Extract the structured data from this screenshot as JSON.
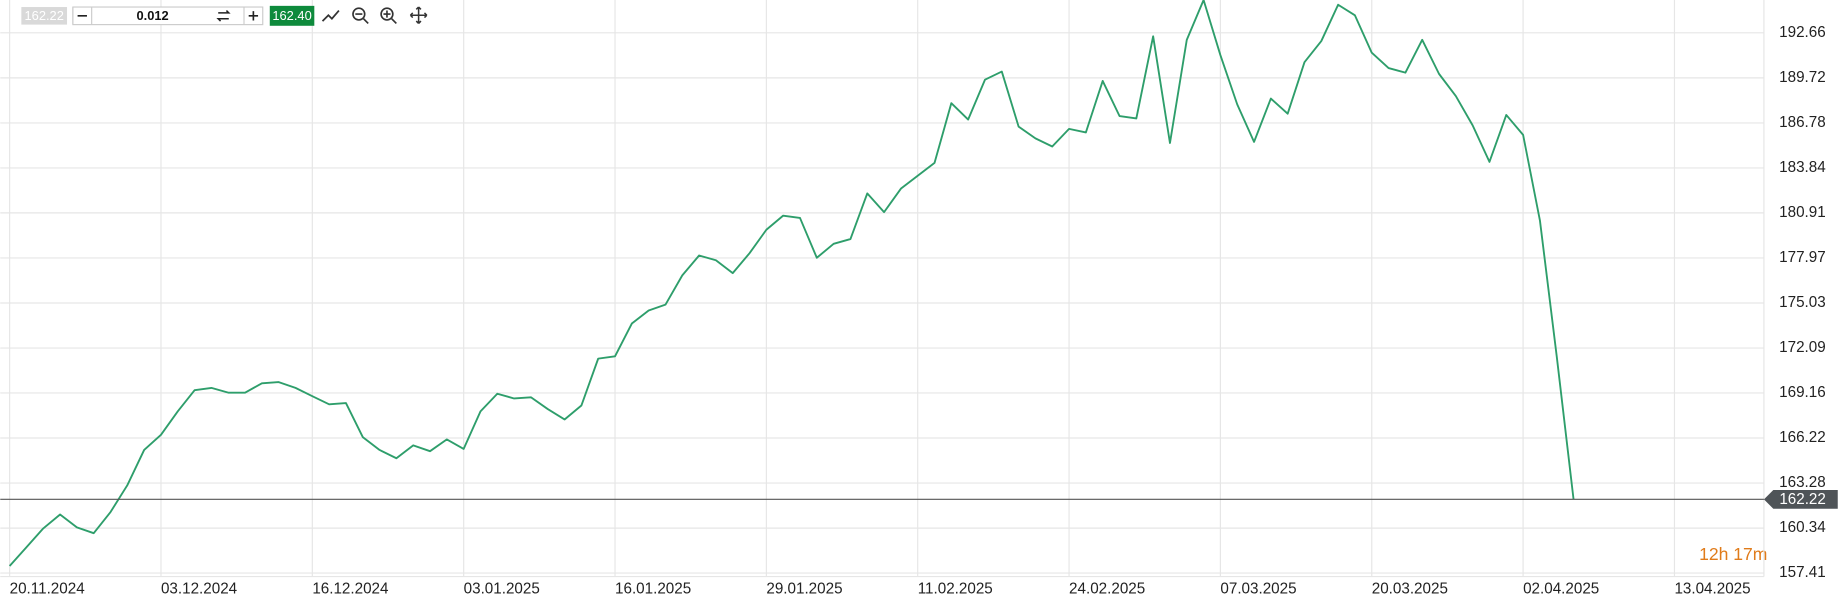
{
  "toolbar": {
    "bid": "162.22",
    "amount": "0.012",
    "ask": "162.40"
  },
  "chart_data": {
    "type": "line",
    "categories": [
      "20.11.2024",
      null,
      null,
      null,
      null,
      null,
      null,
      null,
      null,
      "03.12.2024",
      null,
      null,
      null,
      null,
      null,
      null,
      null,
      null,
      "16.12.2024",
      null,
      null,
      null,
      null,
      null,
      null,
      null,
      null,
      "03.01.2025",
      null,
      null,
      null,
      null,
      null,
      null,
      null,
      null,
      "16.01.2025",
      null,
      null,
      null,
      null,
      null,
      null,
      null,
      null,
      "29.01.2025",
      null,
      null,
      null,
      null,
      null,
      null,
      null,
      null,
      "11.02.2025",
      null,
      null,
      null,
      null,
      null,
      null,
      null,
      null,
      "24.02.2025",
      null,
      null,
      null,
      null,
      null,
      null,
      null,
      null,
      "07.03.2025",
      null,
      null,
      null,
      null,
      null,
      null,
      null,
      null,
      "20.03.2025",
      null,
      null,
      null,
      null,
      null,
      null,
      null,
      null,
      "02.04.2025",
      null,
      null,
      null,
      null,
      null,
      null,
      null,
      null,
      "13.04.2025"
    ],
    "values": [
      157.87,
      159.09,
      160.32,
      161.23,
      160.39,
      160.01,
      161.39,
      163.14,
      165.44,
      166.43,
      167.96,
      169.34,
      169.49,
      169.18,
      169.18,
      169.79,
      169.87,
      169.49,
      168.95,
      168.42,
      168.5,
      166.28,
      165.44,
      164.9,
      165.74,
      165.36,
      166.13,
      165.51,
      167.96,
      169.11,
      168.8,
      168.88,
      168.11,
      167.43,
      168.34,
      171.4,
      171.55,
      173.69,
      174.54,
      174.92,
      176.83,
      178.13,
      177.82,
      176.98,
      178.28,
      179.81,
      180.73,
      180.58,
      177.98,
      178.89,
      179.2,
      182.18,
      180.96,
      182.49,
      183.33,
      184.17,
      188.07,
      187.0,
      189.6,
      190.13,
      186.54,
      185.77,
      185.24,
      186.39,
      186.16,
      189.52,
      187.23,
      187.07,
      192.43,
      185.47,
      192.2,
      194.8,
      191.2,
      187.99,
      185.54,
      188.37,
      187.38,
      190.74,
      192.12,
      194.49,
      193.8,
      191.36,
      190.36,
      190.06,
      192.2,
      189.98,
      188.53,
      186.62,
      184.24,
      187.3,
      186.0,
      180.42,
      171.55,
      162.22,
      null,
      null,
      null,
      null,
      null,
      null
    ],
    "color": "#2e9e6b",
    "ylim": [
      157.18,
      194.8
    ],
    "yticks": [
      157.41,
      160.34,
      163.28,
      166.22,
      169.16,
      172.09,
      175.03,
      177.97,
      180.91,
      183.84,
      186.78,
      189.72,
      192.66
    ],
    "grid": true,
    "last_price": 162.22,
    "countdown": "12h 17m"
  }
}
